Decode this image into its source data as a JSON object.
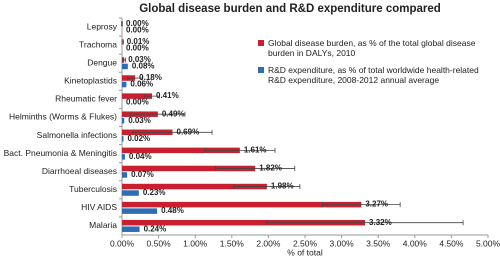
{
  "chart_data": {
    "type": "barh",
    "title": "Global disease burden and R&D expenditure compared",
    "x_label": "% of total",
    "categories": [
      "Leprosy",
      "Trachoma",
      "Dengue",
      "Kinetoplastids",
      "Rheumatic fever",
      "Helminths (Worms & Flukes)",
      "Salmonella infections",
      "Bact. Pneumonia & Meningitis",
      "Diarrhoeal diseases",
      "Tuberculosis",
      "HIV AIDS",
      "Malaria"
    ],
    "series": [
      {
        "name": "Global disease burden, as % of the total global disease burden in DALYs, 2010",
        "color": "#c8202f",
        "label_color": "#c8202f",
        "values": [
          0.0,
          0.01,
          0.03,
          0.18,
          0.41,
          0.49,
          0.69,
          1.61,
          1.82,
          1.98,
          3.27,
          3.32
        ],
        "value_labels": [
          "0.00%",
          "0.01%",
          "0.03%",
          "0.18%",
          "0.41%",
          "0.49%",
          "0.69%",
          "1.61%",
          "1.82%",
          "1.98%",
          "3.27%",
          "3.32%"
        ],
        "errors": [
          0.005,
          0.01,
          0.02,
          0.1,
          0.1,
          0.37,
          0.54,
          0.48,
          0.54,
          0.45,
          0.53,
          1.34
        ]
      },
      {
        "name": "R&D expenditure, as % of total worldwide health-related R&D expenditure, 2008-2012 annual average",
        "color": "#2e6db4",
        "label_color": "#2e6db4",
        "values": [
          0.0,
          0.0,
          0.08,
          0.06,
          0.0,
          0.03,
          0.02,
          0.04,
          0.07,
          0.23,
          0.48,
          0.24
        ],
        "value_labels": [
          "0.00%",
          "0.00%",
          "0.08%",
          "0.06%",
          "0.00%",
          "0.03%",
          "0.02%",
          "0.04%",
          "0.07%",
          "0.23%",
          "0.48%",
          "0.24%"
        ]
      }
    ],
    "xlim": [
      0,
      5
    ],
    "xticks": [
      {
        "value": 0,
        "label": "0.00%"
      },
      {
        "value": 0.5,
        "label": "0.50%"
      },
      {
        "value": 1,
        "label": "1.00%"
      },
      {
        "value": 1.5,
        "label": "1.50%"
      },
      {
        "value": 2,
        "label": "2.00%"
      },
      {
        "value": 2.5,
        "label": "2.50%"
      },
      {
        "value": 3,
        "label": "3.00%"
      },
      {
        "value": 3.5,
        "label": "3.50%"
      },
      {
        "value": 4,
        "label": "4.00%"
      },
      {
        "value": 4.5,
        "label": "4.50%"
      },
      {
        "value": 5,
        "label": "5.00%"
      }
    ],
    "grid": false,
    "legend": "upper right"
  }
}
